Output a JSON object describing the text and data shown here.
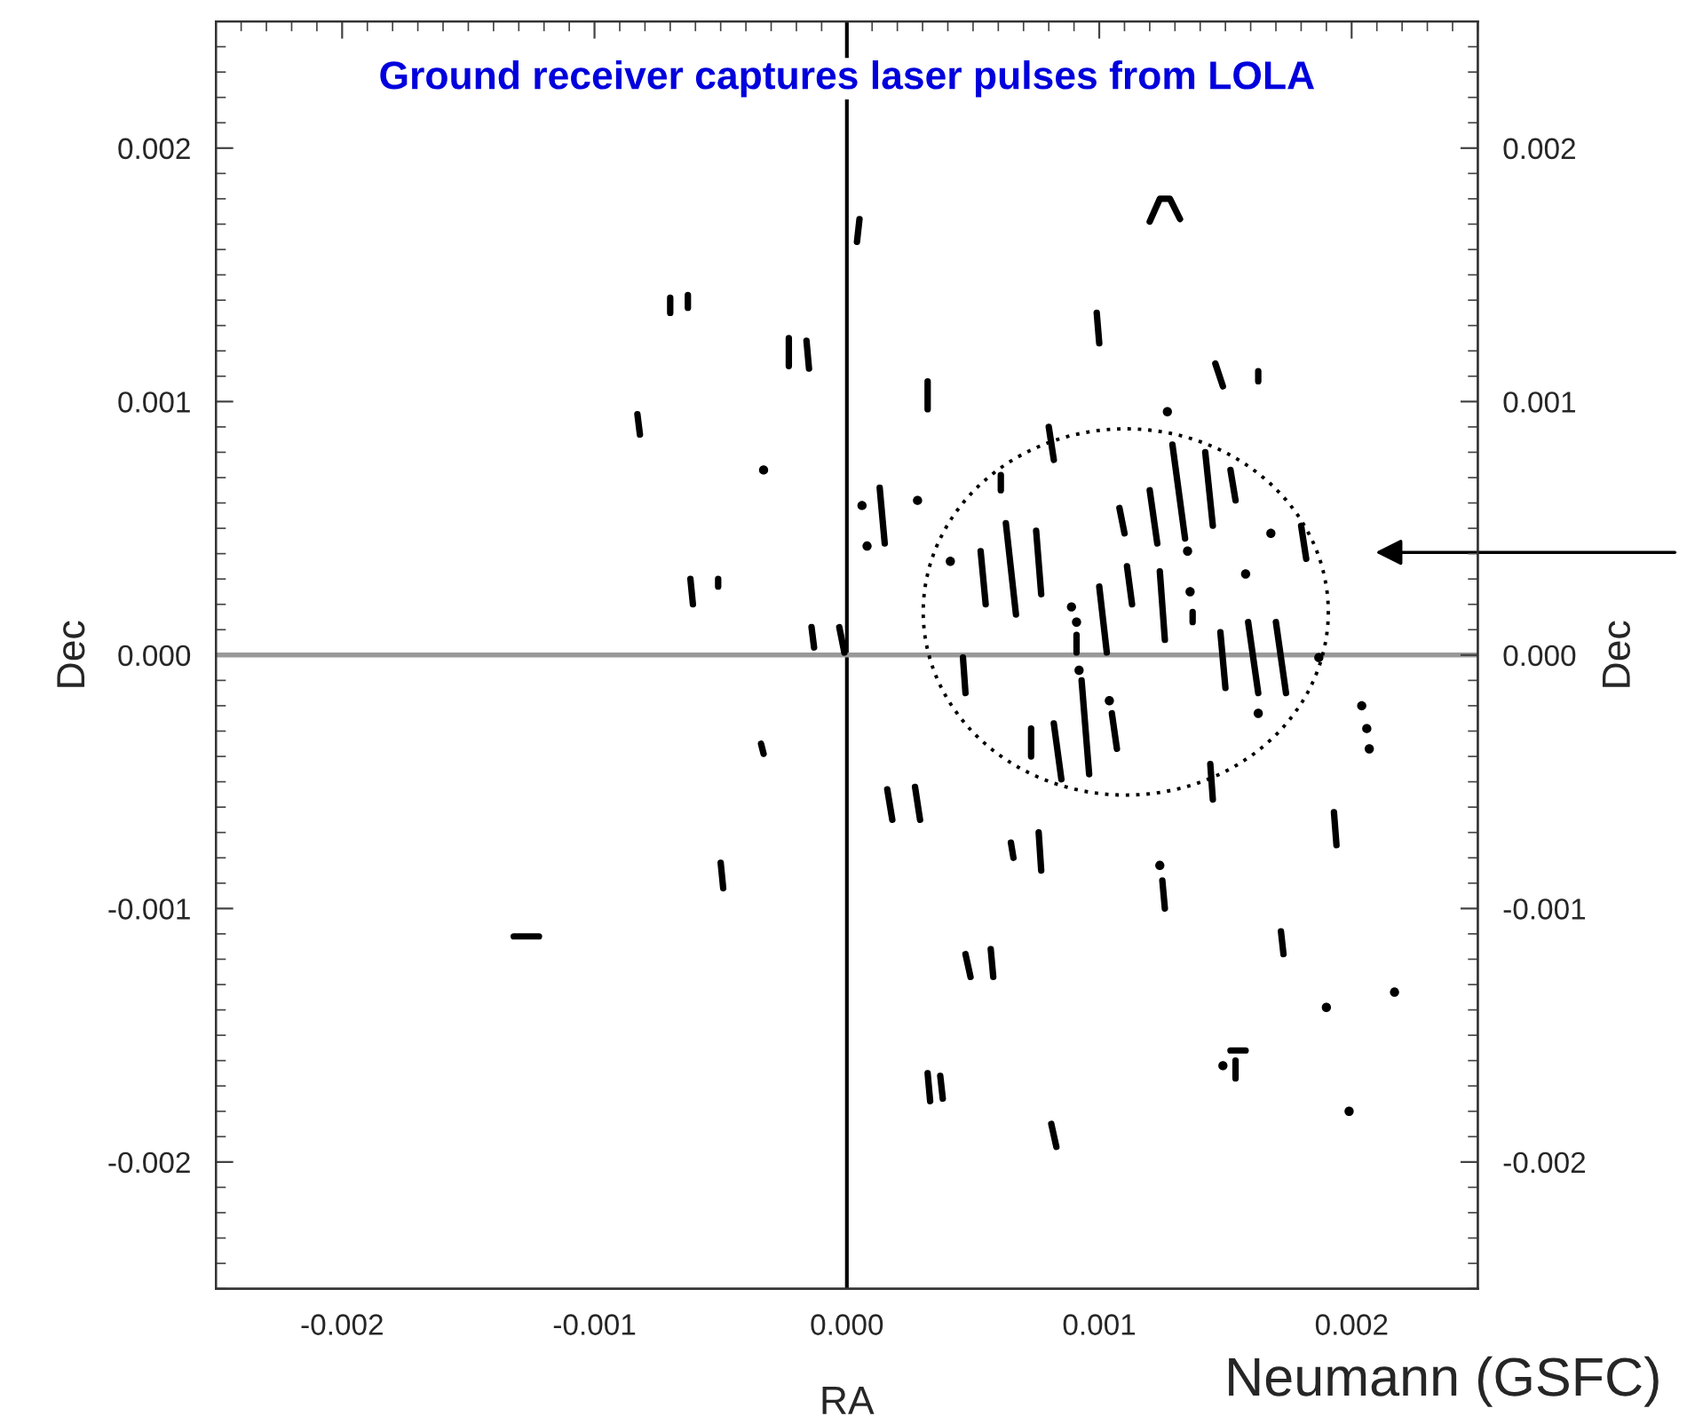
{
  "chart_data": {
    "type": "line",
    "title": "Ground receiver captures laser pulses from LOLA",
    "xlabel": "RA",
    "ylabel": "Dec",
    "y2label": "Dec",
    "annotations": [
      "Neumann (GSFC)"
    ],
    "xlim": [
      -0.0025,
      0.0025
    ],
    "ylim": [
      -0.0025,
      0.0025
    ],
    "y2lim": [
      -0.0025,
      0.0025
    ],
    "xticks": [
      {
        "value": -0.002,
        "label": "-0.002"
      },
      {
        "value": -0.001,
        "label": "-0.001"
      },
      {
        "value": 0,
        "label": "0.000"
      },
      {
        "value": 0.001,
        "label": "0.001"
      },
      {
        "value": 0.002,
        "label": "0.002"
      }
    ],
    "yticks": [
      {
        "value": -0.002,
        "label": "-0.002"
      },
      {
        "value": -0.001,
        "label": "-0.001"
      },
      {
        "value": 0,
        "label": "0.000"
      },
      {
        "value": 0.001,
        "label": "0.001"
      },
      {
        "value": 0.002,
        "label": "0.002"
      }
    ],
    "y2ticks": [
      {
        "value": -0.002,
        "label": "-0.002"
      },
      {
        "value": -0.001,
        "label": "-0.001"
      },
      {
        "value": 0,
        "label": "0.000"
      },
      {
        "value": 0.001,
        "label": "0.001"
      },
      {
        "value": 0.002,
        "label": "0.002"
      }
    ],
    "ref_lines": [
      {
        "axis": "x",
        "value": 0,
        "color": "#000000"
      },
      {
        "axis": "y",
        "value": 0,
        "color": "#999999"
      }
    ],
    "grid": false,
    "legend": false,
    "series": [
      {
        "type": "line",
        "color": "#000000",
        "line_style": "solid",
        "marker": "none",
        "x": [
          5e-05,
          4e-05,
          null,
          -0.0007,
          -0.0007,
          null,
          -0.00063,
          -0.00063,
          null,
          -0.00023,
          -0.00023,
          null,
          -0.00016,
          -0.00015,
          null,
          -0.00083,
          -0.00082,
          null,
          0.00013,
          0.00015,
          null,
          -0.00062,
          -0.00061,
          null,
          -0.00051,
          -0.00051,
          null,
          -0.00014,
          -0.00013,
          null,
          -3e-05,
          -1e-05,
          null,
          0.0012,
          0.00124,
          0.00128,
          0.00132,
          null,
          0.00099,
          0.001,
          null,
          0.00146,
          0.00149,
          null,
          0.00163,
          0.00163,
          null,
          0.00032,
          0.00032,
          null,
          0.0008,
          0.00082,
          null,
          0.00061,
          0.00061,
          null,
          0.00129,
          0.00134,
          null,
          0.00142,
          0.00145,
          null,
          0.00152,
          0.00154,
          null,
          0.00108,
          0.0011,
          null,
          0.0012,
          0.00123,
          null,
          0.0018,
          0.00182,
          null,
          0.00053,
          0.00055,
          null,
          0.00063,
          0.00067,
          null,
          0.00075,
          0.00077,
          null,
          0.00111,
          0.00113,
          null,
          0.00124,
          0.00126,
          null,
          0.00091,
          0.00091,
          null,
          0.001,
          0.00103,
          null,
          0.00137,
          0.00137,
          null,
          0.00148,
          0.0015,
          null,
          0.00159,
          0.00163,
          null,
          0.0017,
          0.00174,
          null,
          0.00046,
          0.00047,
          null,
          0.00093,
          0.00096,
          null,
          0.00105,
          0.00107,
          null,
          0.00073,
          0.00073,
          null,
          0.00082,
          0.00085,
          null,
          0.00144,
          0.00145,
          null,
          0.00016,
          0.00018,
          null,
          0.00027,
          0.00029,
          null,
          0.00065,
          0.00066,
          null,
          0.00076,
          0.00077,
          null,
          0.00193,
          0.00194,
          null,
          0.00125,
          0.00126,
          null,
          0.00172,
          0.00173,
          null,
          0.00047,
          0.00049,
          null,
          0.00057,
          0.00058,
          null,
          0.00152,
          0.00158,
          null,
          0.00154,
          0.00154,
          null,
          0.00032,
          0.00033,
          null,
          0.00037,
          0.00038,
          null,
          0.00081,
          0.00083,
          null,
          -0.00034,
          -0.00033,
          null,
          -0.0005,
          -0.00049,
          null,
          -0.00132,
          -0.00122
        ],
        "values": [
          0.00172,
          0.00163,
          null,
          0.00141,
          0.00135,
          null,
          0.00142,
          0.00137,
          null,
          0.00125,
          0.00114,
          null,
          0.00124,
          0.00113,
          null,
          0.00095,
          0.00087,
          null,
          0.00066,
          0.00044,
          null,
          0.0003,
          0.0002,
          null,
          0.0003,
          0.00027,
          null,
          0.00011,
          3e-05,
          null,
          0.00011,
          1e-05,
          null,
          0.00171,
          0.0018,
          0.0018,
          0.00172,
          null,
          0.00135,
          0.00123,
          null,
          0.00115,
          0.00106,
          null,
          0.00112,
          0.00108,
          null,
          0.00108,
          0.00097,
          null,
          0.0009,
          0.00077,
          null,
          0.00071,
          0.00065,
          null,
          0.00083,
          0.00046,
          null,
          0.0008,
          0.00051,
          null,
          0.00073,
          0.00061,
          null,
          0.00058,
          0.00048,
          null,
          0.00065,
          0.00044,
          null,
          0.00051,
          0.00038,
          null,
          0.00041,
          0.0002,
          null,
          0.00052,
          0.00016,
          null,
          0.00049,
          0.00024,
          null,
          0.00035,
          0.0002,
          null,
          0.00033,
          6e-05,
          null,
          8e-05,
          1e-05,
          null,
          0.00027,
          1e-05,
          null,
          0.00017,
          0.00013,
          null,
          9e-05,
          -0.00013,
          null,
          0.00013,
          -0.00015,
          null,
          0.00013,
          -0.00015,
          null,
          -1e-05,
          -0.00015,
          null,
          -0.0001,
          -0.00047,
          null,
          -0.00023,
          -0.00037,
          null,
          -0.00029,
          -0.0004,
          null,
          -0.00027,
          -0.00049,
          null,
          -0.00043,
          -0.00057,
          null,
          -0.00053,
          -0.00065,
          null,
          -0.00052,
          -0.00065,
          null,
          -0.00074,
          -0.0008,
          null,
          -0.0007,
          -0.00085,
          null,
          -0.00062,
          -0.00075,
          null,
          -0.00089,
          -0.001,
          null,
          -0.00109,
          -0.00118,
          null,
          -0.00118,
          -0.00127,
          null,
          -0.00116,
          -0.00127,
          null,
          -0.00156,
          -0.00156,
          null,
          -0.0016,
          -0.00167,
          null,
          -0.00165,
          -0.00176,
          null,
          -0.00166,
          -0.00175,
          null,
          -0.00185,
          -0.00194,
          null,
          -0.00035,
          -0.00039,
          null,
          -0.00082,
          -0.00092,
          null,
          -0.00111,
          -0.00111
        ]
      },
      {
        "type": "scatter",
        "color": "#000000",
        "marker": "circle",
        "x": [
          -0.00033,
          6e-05,
          8e-05,
          0.00028,
          0.00127,
          0.00168,
          0.00135,
          0.00041,
          0.00158,
          0.00089,
          0.00091,
          0.00136,
          0.00187,
          0.00092,
          0.00104,
          0.00163,
          0.00204,
          0.00206,
          0.00207,
          0.00124,
          0.0019,
          0.00217,
          0.00149,
          0.00199
        ],
        "values": [
          0.00073,
          0.00059,
          0.00043,
          0.00061,
          0.00096,
          0.00048,
          0.00041,
          0.00037,
          0.00032,
          0.00019,
          0.00013,
          0.00025,
          -1e-05,
          -6e-05,
          -0.00018,
          -0.00023,
          -0.0002,
          -0.00029,
          -0.00037,
          -0.00083,
          -0.00139,
          -0.00133,
          -0.00162,
          -0.0018
        ]
      }
    ]
  }
}
